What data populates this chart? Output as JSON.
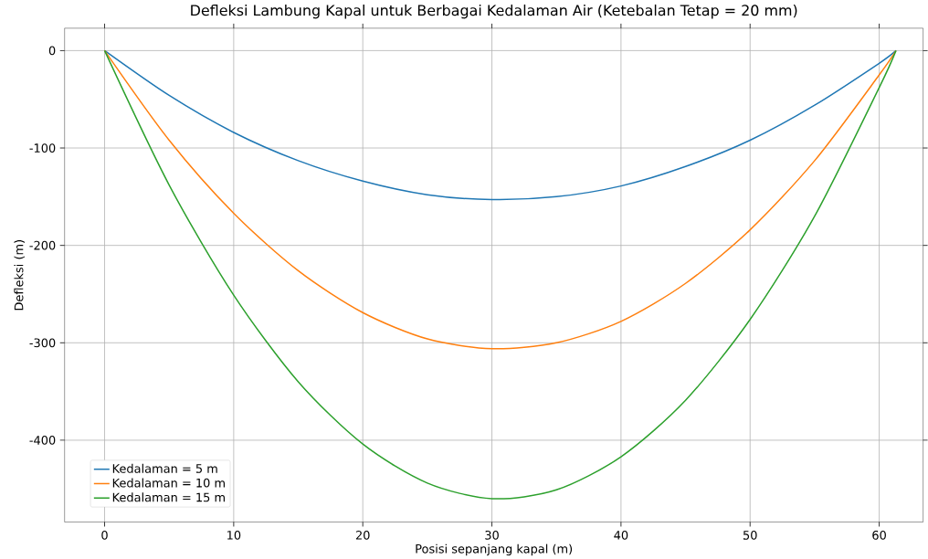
{
  "chart_data": {
    "type": "line",
    "title": "Defleksi Lambung Kapal untuk Berbagai Kedalaman Air (Ketebalan Tetap = 20 mm)",
    "xlabel": "Posisi sepanjang kapal (m)",
    "ylabel": "Defleksi (m)",
    "x": [
      0,
      5,
      10,
      15,
      20,
      25,
      30,
      35,
      40,
      45,
      50,
      55,
      60,
      61.3
    ],
    "series": [
      {
        "name": "Kedalaman = 5 m",
        "color": "#1f77b4",
        "values": [
          0,
          -46,
          -84,
          -113,
          -134,
          -148,
          -153,
          -150,
          -139,
          -119,
          -92,
          -56,
          -13,
          0
        ]
      },
      {
        "name": "Kedalaman = 10 m",
        "color": "#ff7f0e",
        "values": [
          0,
          -92,
          -167,
          -226,
          -269,
          -296,
          -306,
          -300,
          -278,
          -239,
          -184,
          -113,
          -25,
          0
        ]
      },
      {
        "name": "Kedalaman = 15 m",
        "color": "#2ca02c",
        "values": [
          0,
          -138,
          -251,
          -340,
          -404,
          -444,
          -460,
          -451,
          -417,
          -359,
          -276,
          -170,
          -38,
          0
        ]
      }
    ],
    "xlim": [
      -3.1,
      63.4
    ],
    "ylim": [
      -484,
      23
    ],
    "xticks": [
      0,
      10,
      20,
      30,
      40,
      50,
      60
    ],
    "yticks": [
      -400,
      -300,
      -200,
      -100,
      0
    ],
    "grid": true,
    "legend": "bottom left"
  }
}
